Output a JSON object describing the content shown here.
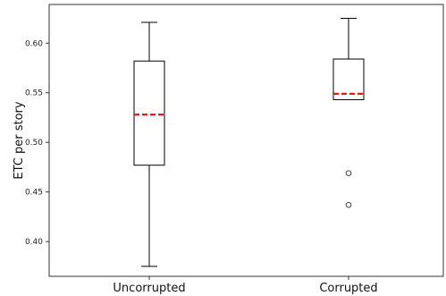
{
  "chart_data": {
    "type": "box",
    "title": "",
    "xlabel": "",
    "ylabel": "ETC per story",
    "ylim": [
      0.365,
      0.639
    ],
    "yticks": [
      0.4,
      0.45,
      0.5,
      0.55,
      0.6
    ],
    "ytick_labels": [
      "0.40",
      "0.45",
      "0.50",
      "0.55",
      "0.60"
    ],
    "grid": false,
    "categories": [
      "Uncorrupted",
      "Corrupted"
    ],
    "boxes": [
      {
        "category": "Uncorrupted",
        "whisker_low": 0.375,
        "q1": 0.477,
        "median": 0.528,
        "q3": 0.582,
        "whisker_high": 0.621,
        "outliers": []
      },
      {
        "category": "Corrupted",
        "whisker_low": 0.543,
        "q1": 0.543,
        "median": 0.549,
        "q3": 0.584,
        "whisker_high": 0.625,
        "outliers": [
          0.469,
          0.437
        ]
      }
    ],
    "colors": {
      "box": "#000000",
      "median": "#e8191b",
      "axes": "#333333",
      "background": "#ffffff"
    }
  }
}
